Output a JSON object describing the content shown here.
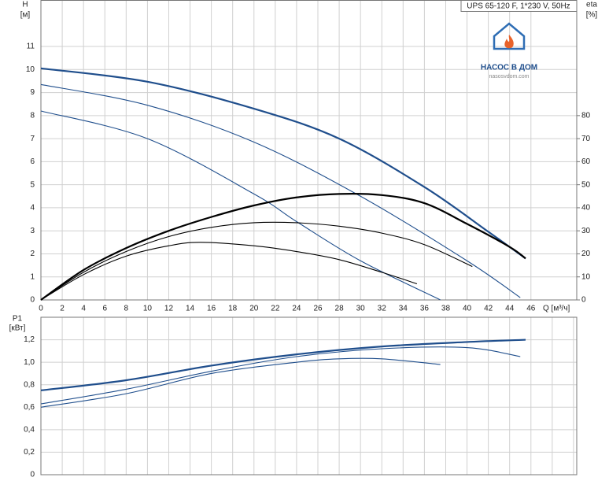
{
  "title": "UPS 65-120 F, 1*230 V, 50Hz",
  "logo": {
    "name": "НАСОС В ДОМ",
    "site": "nasosvdom.com"
  },
  "chart_data": [
    {
      "type": "line",
      "grid": true,
      "y_label": "H",
      "y_unit": "[м]",
      "y2_label": "eta",
      "y2_unit": "[%]",
      "x_label": "Q [м³/ч]",
      "xlim": [
        0,
        50.3
      ],
      "xticks": [
        0,
        2,
        4,
        6,
        8,
        10,
        12,
        14,
        16,
        18,
        20,
        22,
        24,
        26,
        28,
        30,
        32,
        34,
        36,
        38,
        40,
        42,
        44,
        46
      ],
      "xtick_labels": true,
      "ylim": [
        0,
        13
      ],
      "yticks": [
        0,
        1,
        2,
        3,
        4,
        5,
        6,
        7,
        8,
        9,
        10,
        11
      ],
      "y2lim": [
        0,
        130
      ],
      "y2ticks": [
        0,
        10,
        20,
        30,
        40,
        50,
        60,
        70,
        80
      ],
      "series": [
        {
          "color": "#1f4e8c",
          "width": 2.2,
          "x": [
            0,
            10,
            20,
            28,
            36,
            42,
            45.5
          ],
          "values": [
            10.05,
            9.47,
            8.3,
            7.0,
            4.9,
            2.96,
            1.8
          ]
        },
        {
          "color": "#1f4e8c",
          "width": 1.1,
          "x": [
            0,
            10,
            20,
            30,
            40,
            45
          ],
          "values": [
            9.35,
            8.45,
            6.85,
            4.5,
            1.7,
            0.1
          ]
        },
        {
          "color": "#1f4e8c",
          "width": 1.1,
          "x": [
            0,
            10,
            20,
            24,
            30,
            37.5
          ],
          "values": [
            8.2,
            7.0,
            4.6,
            3.4,
            1.7,
            0
          ]
        },
        {
          "color": "#000000",
          "width": 2.2,
          "axis": "y2",
          "x": [
            0,
            4,
            8,
            12,
            16,
            20,
            24,
            28,
            32,
            36,
            40,
            44,
            45.5
          ],
          "values": [
            0,
            13,
            22.5,
            30,
            36,
            41,
            44.5,
            46,
            45.5,
            42,
            33,
            23,
            18
          ]
        },
        {
          "color": "#000000",
          "width": 1.1,
          "axis": "y2",
          "x": [
            0,
            4,
            8,
            12,
            16,
            20,
            24,
            28,
            32,
            36,
            40.5
          ],
          "values": [
            0,
            12,
            21,
            27.5,
            31.5,
            33.5,
            33.5,
            32,
            29,
            24,
            14.5
          ]
        },
        {
          "color": "#000000",
          "width": 1.1,
          "axis": "y2",
          "x": [
            0,
            4,
            8,
            12,
            15,
            20,
            24,
            28,
            32,
            35.3
          ],
          "values": [
            0,
            11,
            19,
            23.5,
            25,
            23.5,
            21,
            17.5,
            12,
            7
          ]
        }
      ]
    },
    {
      "type": "line",
      "grid": true,
      "y_label": "P1",
      "y_unit": "[кВт]",
      "xlim": [
        0,
        50.3
      ],
      "xticks": [
        0,
        2,
        4,
        6,
        8,
        10,
        12,
        14,
        16,
        18,
        20,
        22,
        24,
        26,
        28,
        30,
        32,
        34,
        36,
        38,
        40,
        42,
        44,
        46,
        48,
        50
      ],
      "xtick_labels": false,
      "ylim": [
        0,
        1.4
      ],
      "yticks": [
        0,
        {
          "value": 0.2,
          "label": "0,2"
        },
        {
          "value": 0.4,
          "label": "0,4"
        },
        {
          "value": 0.6,
          "label": "0,6"
        },
        {
          "value": 0.8,
          "label": "0,8"
        },
        {
          "value": 1.0,
          "label": "1,0"
        },
        {
          "value": 1.2,
          "label": "1,2"
        }
      ],
      "series": [
        {
          "color": "#1f4e8c",
          "width": 2.2,
          "x": [
            0,
            8,
            16,
            24,
            32,
            40,
            45.5
          ],
          "values": [
            0.75,
            0.84,
            0.97,
            1.07,
            1.14,
            1.18,
            1.2
          ]
        },
        {
          "color": "#1f4e8c",
          "width": 1.1,
          "x": [
            0,
            8,
            16,
            24,
            32,
            40,
            45
          ],
          "values": [
            0.63,
            0.76,
            0.92,
            1.05,
            1.12,
            1.13,
            1.05
          ]
        },
        {
          "color": "#1f4e8c",
          "width": 1.1,
          "x": [
            0,
            8,
            16,
            24,
            28,
            32,
            37.5
          ],
          "values": [
            0.6,
            0.72,
            0.9,
            1.0,
            1.03,
            1.03,
            0.98
          ]
        }
      ]
    }
  ]
}
